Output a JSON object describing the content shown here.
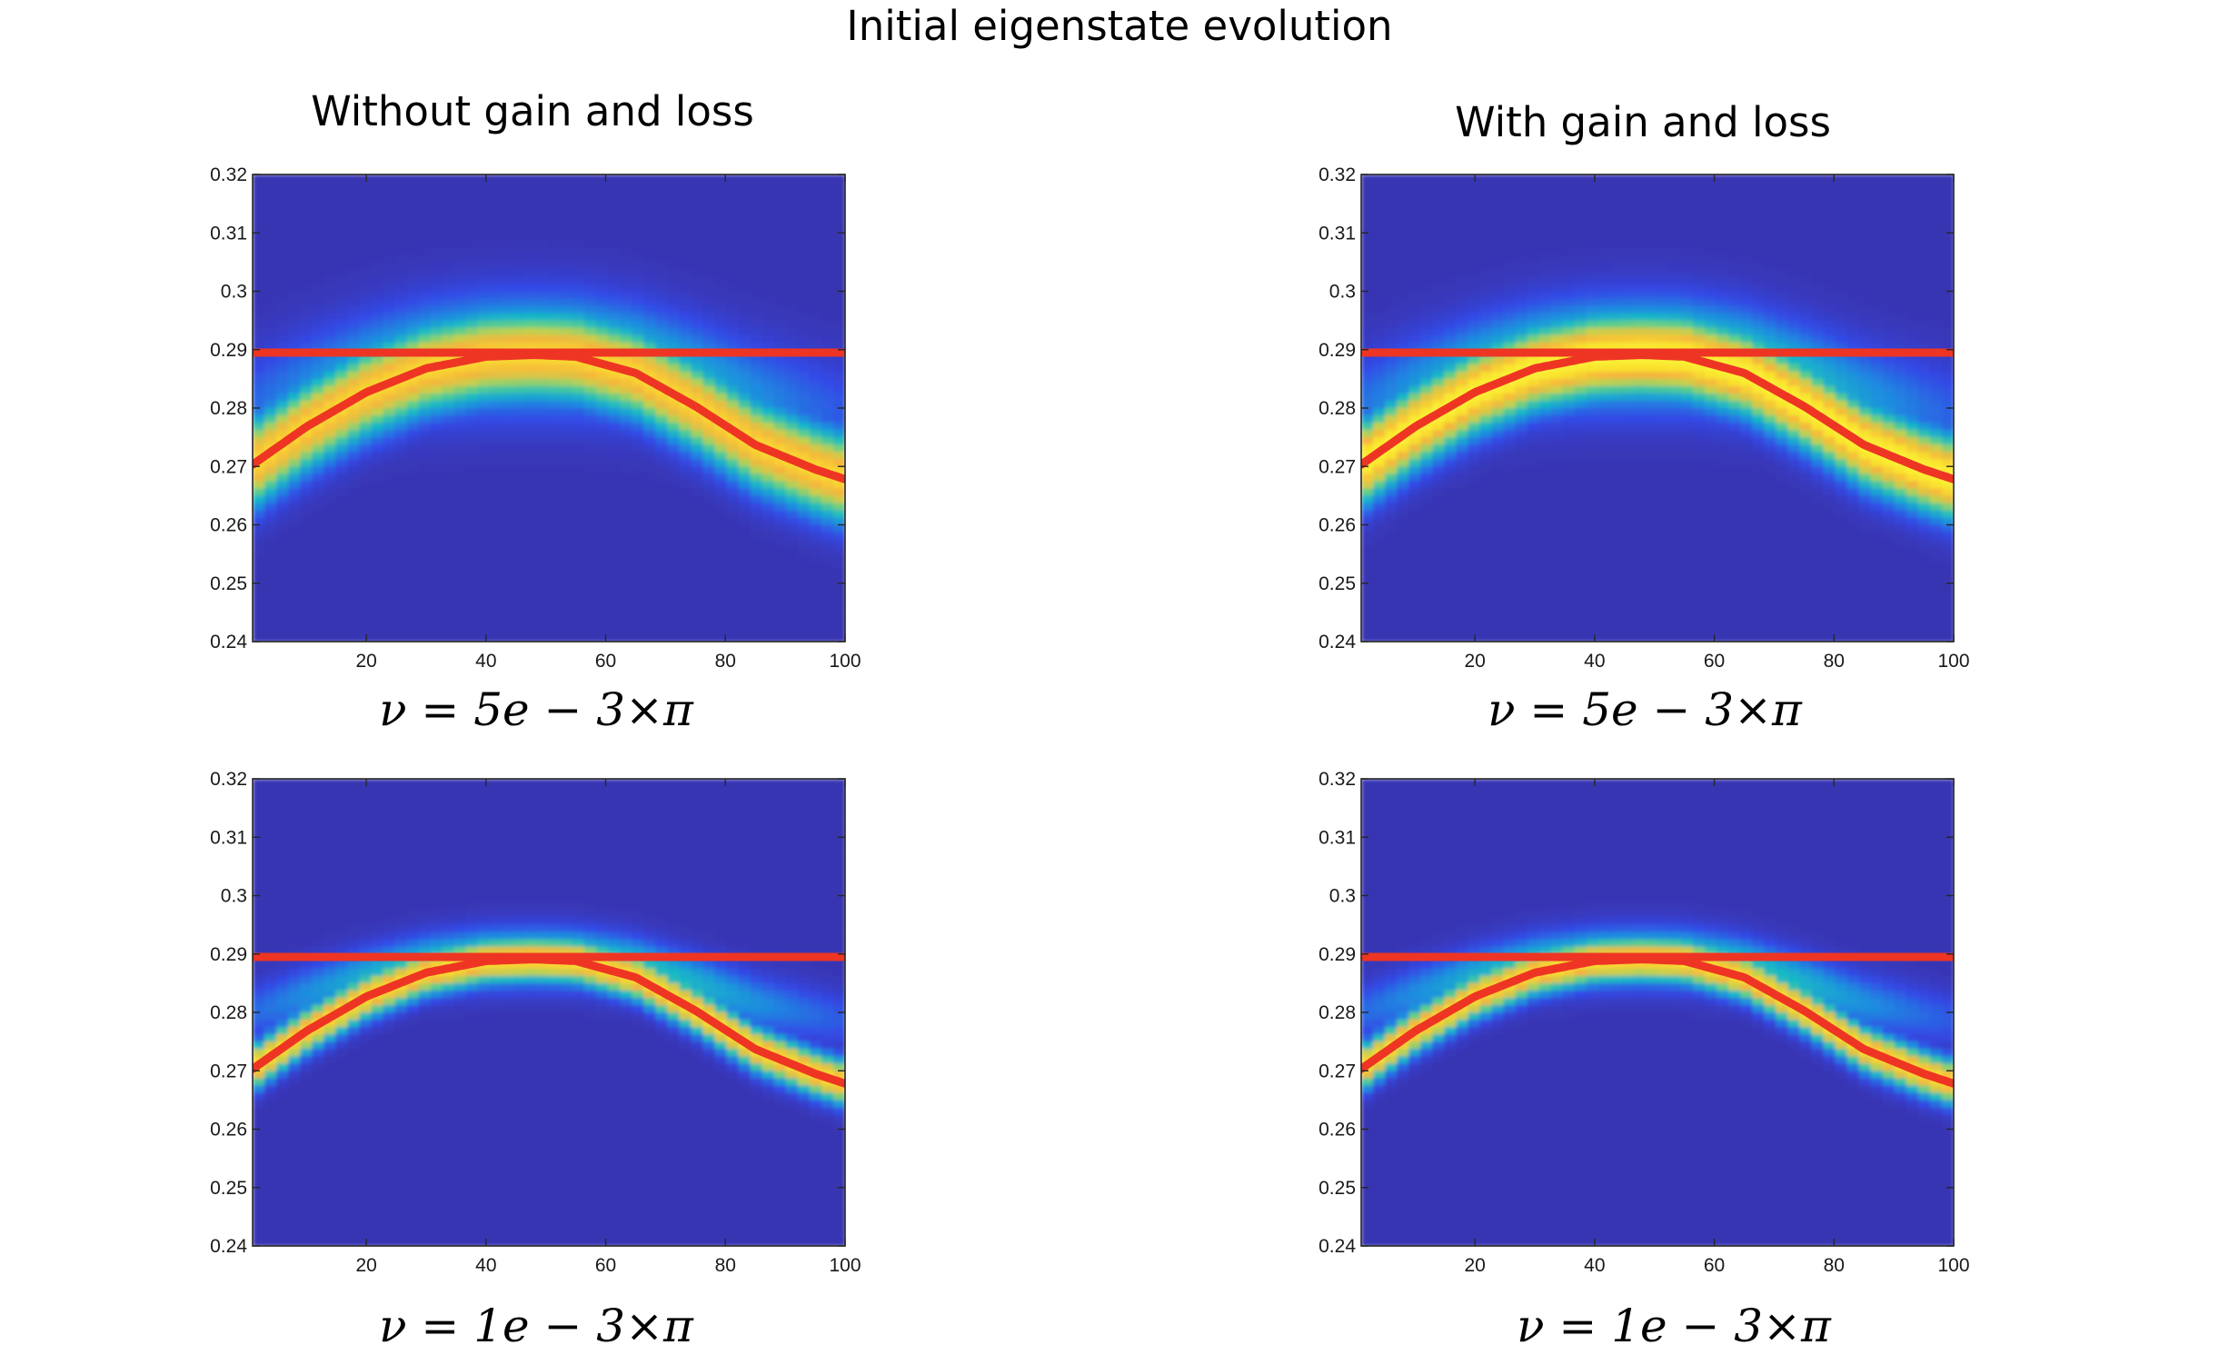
{
  "title": "Initial eigenstate evolution",
  "columns": [
    {
      "title": "Without gain and loss"
    },
    {
      "title": "With gain and loss"
    }
  ],
  "captions": {
    "row1": "ν = 5e − 3×π",
    "row2": "ν = 1e − 3×π"
  },
  "colors": {
    "curve": "#ee3524",
    "colormap": [
      "#3b2fa3",
      "#3349e6",
      "#1f8be0",
      "#19b8c6",
      "#5ecf8a",
      "#c9d04a",
      "#f6b43c",
      "#f9e22c",
      "#faf53a"
    ]
  },
  "chart_data": [
    {
      "type": "heatmap",
      "panel": "top-left",
      "xlim": [
        1,
        100
      ],
      "ylim": [
        0.24,
        0.32
      ],
      "x_ticks": [
        20,
        40,
        60,
        80,
        100
      ],
      "y_ticks": [
        "0.24",
        "0.25",
        "0.26",
        "0.27",
        "0.28",
        "0.29",
        "0.3",
        "0.31",
        "0.32"
      ],
      "band_width": 0.007,
      "band_peak_intensity": 0.85,
      "series": [
        {
          "x": [
            1,
            100
          ],
          "y": [
            0.2895,
            0.2895
          ]
        },
        {
          "x": [
            1,
            10,
            20,
            30,
            40,
            48,
            55,
            65,
            75,
            85,
            95,
            100
          ],
          "y": [
            0.2703,
            0.2768,
            0.2827,
            0.2868,
            0.2888,
            0.2891,
            0.2888,
            0.286,
            0.2803,
            0.2737,
            0.2695,
            0.2678
          ]
        }
      ]
    },
    {
      "type": "heatmap",
      "panel": "top-right",
      "xlim": [
        1,
        100
      ],
      "ylim": [
        0.24,
        0.32
      ],
      "x_ticks": [
        20,
        40,
        60,
        80,
        100
      ],
      "y_ticks": [
        "0.24",
        "0.25",
        "0.26",
        "0.27",
        "0.28",
        "0.29",
        "0.3",
        "0.31",
        "0.32"
      ],
      "band_width": 0.0065,
      "band_peak_intensity": 0.97,
      "series": [
        {
          "x": [
            1,
            100
          ],
          "y": [
            0.2895,
            0.2895
          ]
        },
        {
          "x": [
            1,
            10,
            20,
            30,
            40,
            48,
            55,
            65,
            75,
            85,
            95,
            100
          ],
          "y": [
            0.2703,
            0.2768,
            0.2827,
            0.2868,
            0.2888,
            0.2891,
            0.2888,
            0.286,
            0.2803,
            0.2737,
            0.2695,
            0.2678
          ]
        }
      ]
    },
    {
      "type": "heatmap",
      "panel": "bottom-left",
      "xlim": [
        1,
        100
      ],
      "ylim": [
        0.24,
        0.32
      ],
      "x_ticks": [
        20,
        40,
        60,
        80,
        100
      ],
      "y_ticks": [
        "0.24",
        "0.25",
        "0.26",
        "0.27",
        "0.28",
        "0.29",
        "0.3",
        "0.31",
        "0.32"
      ],
      "band_width": 0.0035,
      "band_peak_intensity": 0.88,
      "series": [
        {
          "x": [
            1,
            100
          ],
          "y": [
            0.2895,
            0.2895
          ]
        },
        {
          "x": [
            1,
            10,
            20,
            30,
            40,
            48,
            55,
            65,
            75,
            85,
            95,
            100
          ],
          "y": [
            0.2703,
            0.2768,
            0.2827,
            0.2868,
            0.2888,
            0.2891,
            0.2888,
            0.286,
            0.2803,
            0.2737,
            0.2695,
            0.2678
          ]
        }
      ]
    },
    {
      "type": "heatmap",
      "panel": "bottom-right",
      "xlim": [
        1,
        100
      ],
      "ylim": [
        0.24,
        0.32
      ],
      "x_ticks": [
        20,
        40,
        60,
        80,
        100
      ],
      "y_ticks": [
        "0.24",
        "0.25",
        "0.26",
        "0.27",
        "0.28",
        "0.29",
        "0.3",
        "0.31",
        "0.32"
      ],
      "band_width": 0.0035,
      "band_peak_intensity": 0.88,
      "series": [
        {
          "x": [
            1,
            100
          ],
          "y": [
            0.2895,
            0.2895
          ]
        },
        {
          "x": [
            1,
            10,
            20,
            30,
            40,
            48,
            55,
            65,
            75,
            85,
            95,
            100
          ],
          "y": [
            0.2703,
            0.2768,
            0.2827,
            0.2868,
            0.2888,
            0.2891,
            0.2888,
            0.286,
            0.2803,
            0.2737,
            0.2695,
            0.2678
          ]
        }
      ]
    }
  ]
}
